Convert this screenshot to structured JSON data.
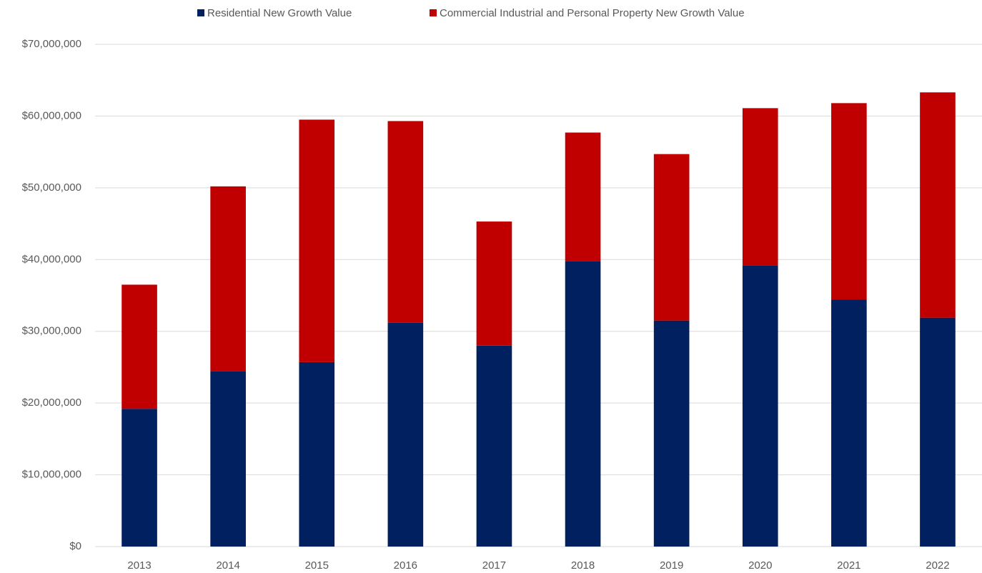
{
  "chart_data": {
    "type": "stacked_bar",
    "categories": [
      "2013",
      "2014",
      "2015",
      "2016",
      "2017",
      "2018",
      "2019",
      "2020",
      "2021",
      "2022"
    ],
    "series": [
      {
        "name": "Residential New Growth Value",
        "color": "#002060",
        "values": [
          19200000,
          24400000,
          25700000,
          31200000,
          28000000,
          39800000,
          31500000,
          39200000,
          34400000,
          31900000
        ]
      },
      {
        "name": "Commercial Industrial and Personal Property New Growth Value",
        "color": "#c00000",
        "values": [
          17300000,
          25800000,
          33800000,
          28100000,
          17300000,
          17900000,
          23200000,
          21900000,
          27400000,
          31400000
        ]
      }
    ],
    "ylim": [
      0,
      70000000
    ],
    "yticks": [
      {
        "value": 0,
        "label": "$0"
      },
      {
        "value": 10000000,
        "label": "$10,000,000"
      },
      {
        "value": 20000000,
        "label": "$20,000,000"
      },
      {
        "value": 30000000,
        "label": "$30,000,000"
      },
      {
        "value": 40000000,
        "label": "$40,000,000"
      },
      {
        "value": 50000000,
        "label": "$50,000,000"
      },
      {
        "value": 60000000,
        "label": "$60,000,000"
      },
      {
        "value": 70000000,
        "label": "$70,000,000"
      }
    ],
    "grid": true,
    "legend": "top"
  }
}
